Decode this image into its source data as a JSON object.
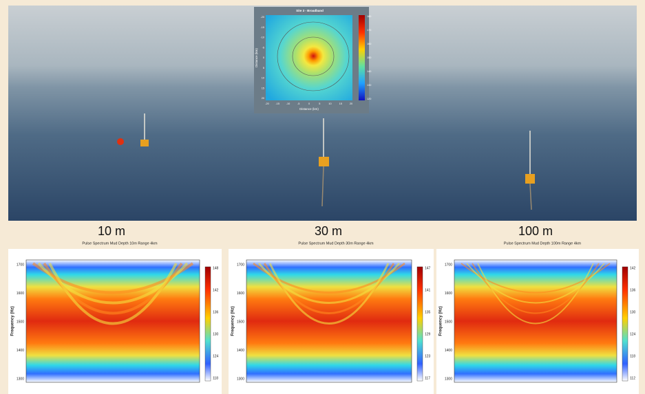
{
  "inset": {
    "title": "Site 3 - Broadband",
    "xlabel": "Distance (km)",
    "ylabel": "Distance (km)",
    "xticks": [
      -20,
      -15,
      -10,
      -5,
      0,
      5,
      10,
      15,
      20
    ],
    "yticks": [
      -20,
      -15,
      -10,
      -5,
      0,
      5,
      10,
      15,
      20
    ],
    "colorbar_ticks": [
      180,
      170,
      160,
      150,
      140,
      130,
      120
    ]
  },
  "panels": [
    {
      "label": "10 m",
      "title": "Pulse Spectrum Mud Depth 10m Range 4km",
      "ylabel": "Frequency (Hz)",
      "yticks": [
        1700,
        1600,
        1500,
        1400,
        1300
      ],
      "colorbar_ticks": [
        148,
        142,
        136,
        130,
        124,
        118
      ]
    },
    {
      "label": "30 m",
      "title": "Pulse Spectrum Mud Depth 30m Range 4km",
      "ylabel": "Frequency (Hz)",
      "yticks": [
        1700,
        1600,
        1500,
        1400,
        1300
      ],
      "colorbar_ticks": [
        147,
        141,
        135,
        129,
        123,
        117
      ]
    },
    {
      "label": "100 m",
      "title": "Pulse Spectrum Mud Depth 100m Range 4km",
      "ylabel": "Frequency (Hz)",
      "yticks": [
        1700,
        1600,
        1500,
        1400,
        1300
      ],
      "colorbar_ticks": [
        142,
        136,
        130,
        124,
        118,
        112
      ]
    }
  ]
}
